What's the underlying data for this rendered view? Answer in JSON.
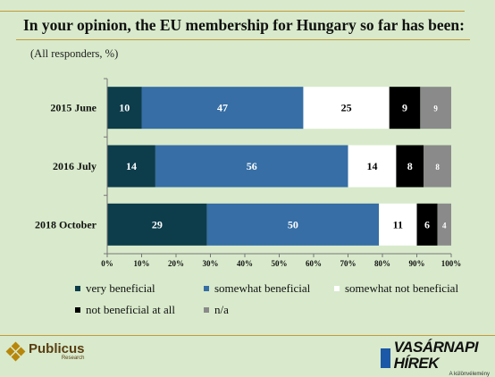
{
  "title": "In your opinion, the EU membership for Hungary so far has been:",
  "subtitle": "(All responders, %)",
  "colors": {
    "very_beneficial": "#0d3c4b",
    "somewhat_beneficial": "#366ea5",
    "somewhat_not_beneficial": "#ffffff",
    "not_beneficial_at_all": "#000000",
    "na": "#8a8a8a"
  },
  "chart_data": {
    "type": "bar",
    "orientation": "horizontal",
    "stacked": true,
    "categories": [
      "2015 June",
      "2016 July",
      "2018 October"
    ],
    "series": [
      {
        "name": "very beneficial",
        "values": [
          10,
          14,
          29
        ],
        "color": "#0d3c4b",
        "label_color": "#ffffff"
      },
      {
        "name": "somewhat beneficial",
        "values": [
          47,
          56,
          50
        ],
        "color": "#366ea5",
        "label_color": "#ffffff"
      },
      {
        "name": "somewhat not beneficial",
        "values": [
          25,
          14,
          11
        ],
        "color": "#ffffff",
        "label_color": "#000000"
      },
      {
        "name": "not beneficial at all",
        "values": [
          9,
          8,
          6
        ],
        "color": "#000000",
        "label_color": "#ffffff"
      },
      {
        "name": "n/a",
        "values": [
          9,
          8,
          4
        ],
        "color": "#8a8a8a",
        "label_color": "#ffffff"
      }
    ],
    "xlim": [
      0,
      100
    ],
    "xticks": [
      "0%",
      "10%",
      "20%",
      "30%",
      "40%",
      "50%",
      "60%",
      "70%",
      "80%",
      "90%",
      "100%"
    ],
    "grid": false,
    "legend_position": "bottom"
  },
  "legend": [
    {
      "label": "very beneficial",
      "color": "#0d3c4b"
    },
    {
      "label": "somewhat beneficial",
      "color": "#366ea5"
    },
    {
      "label": "somewhat not beneficial",
      "color": "#ffffff"
    },
    {
      "label": "not beneficial at all",
      "color": "#000000"
    },
    {
      "label": "n/a",
      "color": "#8a8a8a"
    }
  ],
  "footer": {
    "left_logo": {
      "brand": "Publicus",
      "sub": "Research"
    },
    "right_logo": {
      "brand": "VASÁRNAPI HÍREK",
      "sub": "A különvélemény"
    }
  }
}
